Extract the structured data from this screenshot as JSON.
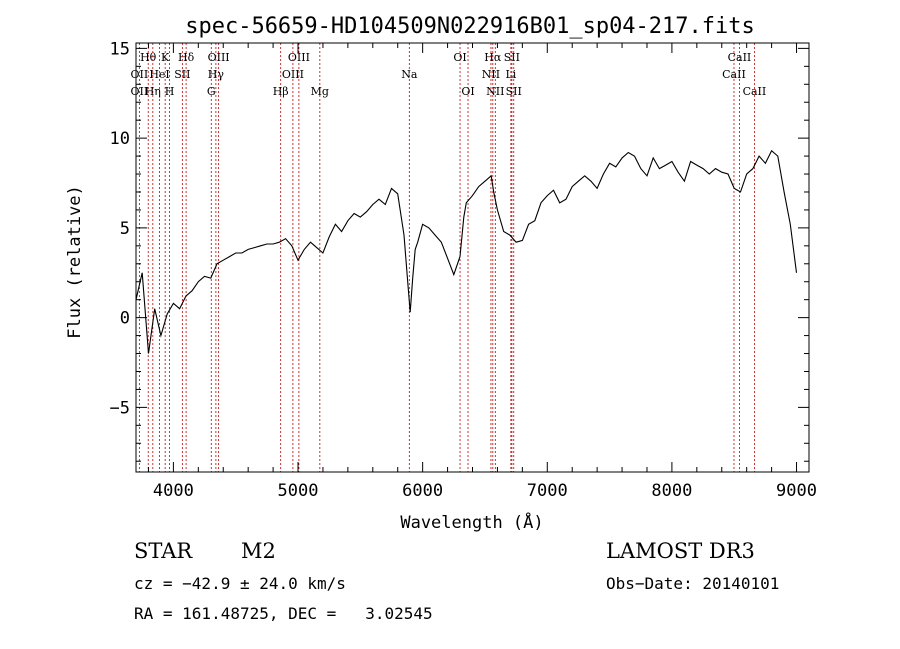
{
  "chart_data": {
    "type": "line",
    "title": "spec-56659-HD104509N022916B01_sp04-217.fits",
    "xlabel": "Wavelength (Å)",
    "ylabel": "Flux (relative)",
    "xlim": [
      3700,
      9100
    ],
    "ylim": [
      -8.6,
      15.3
    ],
    "x_ticks": [
      4000,
      5000,
      6000,
      7000,
      8000,
      9000
    ],
    "x_tick_labels": [
      "4000",
      "5000",
      "6000",
      "7000",
      "8000",
      "9000"
    ],
    "y_ticks": [
      -5,
      0,
      5,
      10,
      15
    ],
    "y_tick_labels": [
      "−5",
      "0",
      "5",
      "10",
      "15"
    ],
    "grid": false,
    "series": [
      {
        "values_x": [
          3700,
          3750,
          3800,
          3850,
          3900,
          3950,
          4000,
          4050,
          4100,
          4150,
          4200,
          4250,
          4300,
          4350,
          4400,
          4450,
          4500,
          4550,
          4600,
          4650,
          4700,
          4750,
          4800,
          4850,
          4900,
          4950,
          5000,
          5050,
          5100,
          5150,
          5200,
          5250,
          5300,
          5350,
          5400,
          5450,
          5500,
          5550,
          5600,
          5650,
          5700,
          5750,
          5800,
          5850,
          5880,
          5900,
          5920,
          5940,
          5960,
          6000,
          6050,
          6100,
          6150,
          6200,
          6250,
          6300,
          6330,
          6350,
          6400,
          6450,
          6500,
          6550,
          6570,
          6600,
          6650,
          6700,
          6750,
          6800,
          6850,
          6900,
          6950,
          7000,
          7050,
          7100,
          7150,
          7200,
          7250,
          7300,
          7350,
          7400,
          7450,
          7500,
          7550,
          7600,
          7650,
          7700,
          7750,
          7800,
          7850,
          7900,
          7950,
          8000,
          8050,
          8100,
          8150,
          8200,
          8250,
          8300,
          8350,
          8400,
          8450,
          8500,
          8550,
          8600,
          8650,
          8700,
          8750,
          8800,
          8850,
          8900,
          8950,
          9000
        ],
        "values_y": [
          1.0,
          2.5,
          -2.0,
          0.5,
          -1.0,
          0.2,
          0.8,
          0.5,
          1.2,
          1.5,
          2.0,
          2.3,
          2.2,
          3.0,
          3.2,
          3.4,
          3.6,
          3.6,
          3.8,
          3.9,
          4.0,
          4.1,
          4.1,
          4.2,
          4.4,
          4.0,
          3.2,
          3.8,
          4.2,
          3.9,
          3.6,
          4.5,
          5.2,
          4.8,
          5.4,
          5.8,
          5.6,
          5.9,
          6.3,
          6.6,
          6.3,
          7.2,
          6.9,
          4.6,
          2.0,
          0.3,
          2.2,
          3.8,
          4.2,
          5.2,
          5.0,
          4.6,
          4.2,
          3.3,
          2.4,
          3.4,
          5.6,
          6.4,
          6.8,
          7.3,
          7.6,
          7.9,
          7.0,
          6.0,
          4.8,
          4.6,
          4.2,
          4.3,
          5.2,
          5.4,
          6.4,
          6.8,
          7.1,
          6.4,
          6.6,
          7.3,
          7.6,
          7.9,
          7.6,
          7.2,
          8.0,
          8.6,
          8.4,
          8.9,
          9.2,
          9.0,
          8.3,
          7.9,
          8.9,
          8.3,
          8.5,
          8.7,
          8.1,
          7.6,
          8.7,
          8.5,
          8.3,
          8.0,
          8.3,
          8.1,
          8.0,
          7.2,
          7.0,
          8.0,
          8.3,
          9.0,
          8.6,
          9.3,
          9.0,
          7.0,
          5.2,
          2.5
        ]
      }
    ],
    "line_markers": [
      {
        "label": "Hθ",
        "x": 3798,
        "row": 1
      },
      {
        "label": "K",
        "x": 3934,
        "row": 1
      },
      {
        "label": "Hδ",
        "x": 4102,
        "row": 1
      },
      {
        "label": "OII",
        "x": 3727,
        "row": 2
      },
      {
        "label": "HeI",
        "x": 3889,
        "row": 2
      },
      {
        "label": "SII",
        "x": 4072,
        "row": 2
      },
      {
        "label": "OII",
        "x": 3727,
        "row": 3
      },
      {
        "label": "Hη",
        "x": 3835,
        "row": 3
      },
      {
        "label": "H",
        "x": 3969,
        "row": 3
      },
      {
        "label": "OIII",
        "x": 4363,
        "row": 1
      },
      {
        "label": "Hγ",
        "x": 4341,
        "row": 2
      },
      {
        "label": "G",
        "x": 4304,
        "row": 3
      },
      {
        "label": "OIII",
        "x": 5007,
        "row": 1
      },
      {
        "label": "OIII",
        "x": 4959,
        "row": 2
      },
      {
        "label": "Hβ",
        "x": 4861,
        "row": 3
      },
      {
        "label": "Mg",
        "x": 5175,
        "row": 3
      },
      {
        "label": "Na",
        "x": 5893,
        "row": 2
      },
      {
        "label": "OI",
        "x": 6300,
        "row": 1
      },
      {
        "label": "OI",
        "x": 6364,
        "row": 3
      },
      {
        "label": "Hα",
        "x": 6563,
        "row": 1
      },
      {
        "label": "SII",
        "x": 6716,
        "row": 1
      },
      {
        "label": "NII",
        "x": 6548,
        "row": 2
      },
      {
        "label": "Li",
        "x": 6708,
        "row": 2
      },
      {
        "label": "NII",
        "x": 6583,
        "row": 3
      },
      {
        "label": "SII",
        "x": 6731,
        "row": 3
      },
      {
        "label": "CaII",
        "x": 8542,
        "row": 1
      },
      {
        "label": "CaII",
        "x": 8498,
        "row": 2
      },
      {
        "label": "CaII",
        "x": 8662,
        "row": 3
      }
    ]
  },
  "info": {
    "class_label": "STAR",
    "subclass": "M2",
    "survey": "LAMOST DR3",
    "cz": "cz = −42.9 ± 24.0 km/s",
    "obs_date": "Obs−Date: 20140101",
    "radec": "RA = 161.48725, DEC =   3.02545"
  }
}
